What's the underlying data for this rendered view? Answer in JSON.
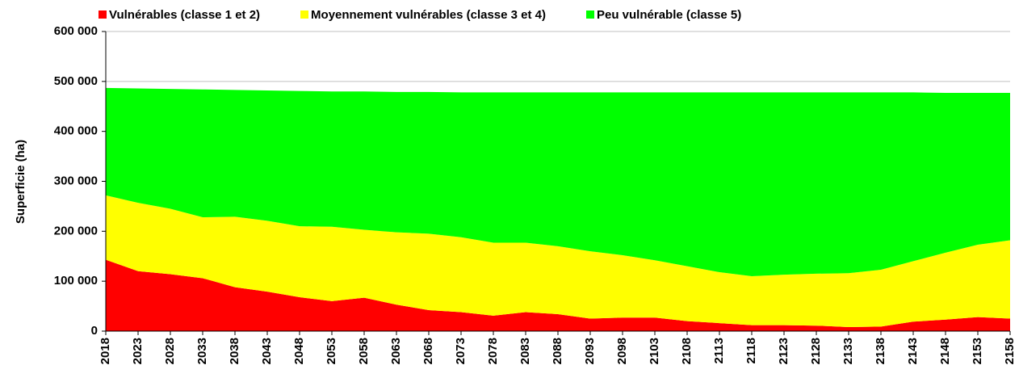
{
  "chart_data": {
    "type": "stacked-area",
    "y_label": "Superficie (ha)",
    "categories": [
      2018,
      2023,
      2028,
      2033,
      2038,
      2043,
      2048,
      2053,
      2058,
      2063,
      2068,
      2073,
      2078,
      2083,
      2088,
      2093,
      2098,
      2103,
      2108,
      2113,
      2118,
      2123,
      2128,
      2133,
      2138,
      2143,
      2148,
      2153,
      2158
    ],
    "series": [
      {
        "name": "Vulnérables (classe 1 et 2)",
        "color": "#ff0000",
        "values": [
          143000,
          120000,
          114000,
          106000,
          88000,
          79000,
          68000,
          60000,
          67000,
          53000,
          42000,
          38000,
          31000,
          38000,
          34000,
          25000,
          27000,
          27000,
          20000,
          16000,
          12000,
          12000,
          11000,
          8000,
          9000,
          19000,
          23000,
          28000,
          25000
        ]
      },
      {
        "name": "Moyennement vulnérables (classe 3 et 4)",
        "color": "#ffff00",
        "values": [
          129000,
          137000,
          131000,
          122000,
          141000,
          142000,
          142000,
          149000,
          136000,
          145000,
          153000,
          150000,
          146000,
          139000,
          136000,
          135000,
          125000,
          115000,
          110000,
          102000,
          98000,
          101000,
          104000,
          108000,
          114000,
          121000,
          134000,
          145000,
          157000
        ]
      },
      {
        "name": "Peu vulnérable (classe 5)",
        "color": "#00ff00",
        "values": [
          215000,
          229000,
          240000,
          256000,
          254000,
          261000,
          271000,
          271000,
          277000,
          281000,
          284000,
          290000,
          301000,
          301000,
          308000,
          318000,
          326000,
          336000,
          348000,
          360000,
          368000,
          365000,
          363000,
          362000,
          355000,
          338000,
          320000,
          304000,
          295000
        ]
      }
    ],
    "ylim": [
      0,
      600000
    ],
    "yticks": [
      0,
      {
        "value": 100000,
        "label": "100 000"
      },
      {
        "value": 200000,
        "label": "200 000"
      },
      {
        "value": 300000,
        "label": "300 000"
      },
      {
        "value": 400000,
        "label": "400 000"
      },
      {
        "value": 500000,
        "label": "500 000"
      },
      {
        "value": 600000,
        "label": "600 000"
      }
    ],
    "grid": true,
    "legend": "top"
  }
}
